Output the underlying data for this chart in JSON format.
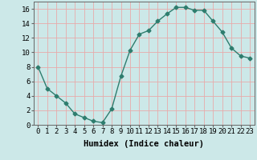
{
  "x": [
    0,
    1,
    2,
    3,
    4,
    5,
    6,
    7,
    8,
    9,
    10,
    11,
    12,
    13,
    14,
    15,
    16,
    17,
    18,
    19,
    20,
    21,
    22,
    23
  ],
  "y": [
    8,
    5,
    4,
    3,
    1.5,
    1,
    0.5,
    0.3,
    2.2,
    6.7,
    10.3,
    12.5,
    13,
    14.3,
    15.3,
    16.2,
    16.2,
    15.8,
    15.8,
    14.3,
    12.8,
    10.6,
    9.5,
    9.2
  ],
  "line_color": "#2e7d6e",
  "marker": "D",
  "marker_size": 2.5,
  "bg_color": "#cce8e8",
  "grid_color": "#e8aaaa",
  "xlabel": "Humidex (Indice chaleur)",
  "xlim": [
    -0.5,
    23.5
  ],
  "ylim": [
    0,
    17
  ],
  "xticks": [
    0,
    1,
    2,
    3,
    4,
    5,
    6,
    7,
    8,
    9,
    10,
    11,
    12,
    13,
    14,
    15,
    16,
    17,
    18,
    19,
    20,
    21,
    22,
    23
  ],
  "yticks": [
    0,
    2,
    4,
    6,
    8,
    10,
    12,
    14,
    16
  ],
  "xlabel_fontsize": 7.5,
  "tick_fontsize": 6.5,
  "line_width": 1.0
}
